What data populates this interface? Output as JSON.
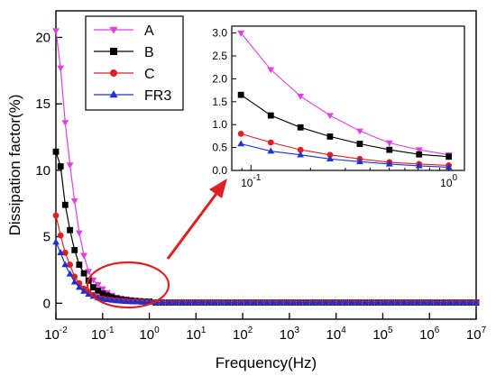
{
  "chart_data": [
    {
      "type": "line",
      "role": "main",
      "xlabel": "Frequency(Hz)",
      "ylabel": "Dissipation factor(%)",
      "xscale": "log",
      "xlim": [
        0.01,
        10000000
      ],
      "ylim": [
        -1.2,
        22
      ],
      "y_ticks": [
        0,
        5,
        10,
        15,
        20
      ],
      "x_ticks": [
        0.01,
        0.1,
        1,
        10,
        100,
        1000,
        10000,
        100000,
        1000000,
        10000000
      ],
      "x_tick_labels": [
        {
          "base": "10",
          "exp": "-2"
        },
        {
          "base": "10",
          "exp": "-1"
        },
        {
          "base": "10",
          "exp": "0"
        },
        {
          "base": "10",
          "exp": "1"
        },
        {
          "base": "10",
          "exp": "2"
        },
        {
          "base": "10",
          "exp": "3"
        },
        {
          "base": "10",
          "exp": "4"
        },
        {
          "base": "10",
          "exp": "5"
        },
        {
          "base": "10",
          "exp": "6"
        },
        {
          "base": "10",
          "exp": "7"
        }
      ],
      "legend_position": "top-left",
      "series": [
        {
          "name": "A",
          "color": "#e040e0",
          "marker": "triangle-down",
          "values": [
            20.5,
            17.7,
            13.6,
            10.4,
            7.7,
            5.3,
            3.6,
            2.4,
            1.75,
            1.4,
            1.08,
            0.8,
            0.6,
            0.45,
            0.37,
            0.31,
            0.26,
            0.22,
            0.2,
            0.18,
            0.16
          ]
        },
        {
          "name": "B",
          "color": "#000000",
          "marker": "square",
          "values": [
            11.4,
            10.3,
            7.4,
            5.5,
            4.0,
            2.9,
            2.25,
            1.7,
            1.2,
            0.95,
            0.72,
            0.58,
            0.45,
            0.35,
            0.28,
            0.24,
            0.2,
            0.17,
            0.15,
            0.13,
            0.12
          ]
        },
        {
          "name": "C",
          "color": "#e02020",
          "marker": "circle",
          "values": [
            6.6,
            5.1,
            3.8,
            2.9,
            2.0,
            1.5,
            1.1,
            0.85,
            0.62,
            0.45,
            0.36,
            0.3,
            0.26,
            0.22,
            0.19,
            0.17,
            0.15,
            0.13,
            0.12,
            0.11,
            0.1
          ]
        },
        {
          "name": "FR3",
          "color": "#2030d0",
          "marker": "triangle-up",
          "values": [
            4.6,
            3.8,
            2.9,
            2.2,
            1.6,
            1.2,
            0.9,
            0.68,
            0.52,
            0.4,
            0.32,
            0.27,
            0.23,
            0.19,
            0.16,
            0.14,
            0.12,
            0.11,
            0.1,
            0.09,
            0.08
          ]
        }
      ],
      "x": [
        0.01,
        0.0126,
        0.0158,
        0.02,
        0.0251,
        0.0316,
        0.0398,
        0.05,
        0.063,
        0.0794,
        0.1,
        0.126,
        0.158,
        0.2,
        0.251,
        0.316,
        0.398,
        0.5,
        0.63,
        0.794,
        1.0
      ],
      "tail": {
        "from": 1,
        "to": 10000000,
        "value": 0.05,
        "points": 50
      }
    },
    {
      "type": "line",
      "role": "inset",
      "xscale": "log",
      "xlim": [
        0.08,
        1.2
      ],
      "ylim": [
        0,
        3.15
      ],
      "y_ticks": [
        0.0,
        0.5,
        1.0,
        1.5,
        2.0,
        2.5,
        3.0
      ],
      "y_tick_labels": [
        "0.0",
        "0.5",
        "1.0",
        "1.5",
        "2.0",
        "2.5",
        "3.0"
      ],
      "x_tick_labels": [
        {
          "value": 0.1,
          "base": "10",
          "exp": "-1"
        },
        {
          "value": 1,
          "base": "10",
          "exp": "0"
        }
      ],
      "x": [
        0.089,
        0.126,
        0.178,
        0.251,
        0.355,
        0.501,
        0.708,
        1.0
      ],
      "series": [
        {
          "name": "A",
          "color": "#e040e0",
          "marker": "triangle-down",
          "values": [
            3.0,
            2.2,
            1.62,
            1.2,
            0.86,
            0.6,
            0.45,
            0.34
          ]
        },
        {
          "name": "B",
          "color": "#000000",
          "marker": "square",
          "values": [
            1.65,
            1.2,
            0.94,
            0.74,
            0.58,
            0.45,
            0.35,
            0.3
          ]
        },
        {
          "name": "C",
          "color": "#e02020",
          "marker": "circle",
          "values": [
            0.8,
            0.61,
            0.45,
            0.34,
            0.25,
            0.18,
            0.14,
            0.11
          ]
        },
        {
          "name": "FR3",
          "color": "#2030d0",
          "marker": "triangle-up",
          "values": [
            0.58,
            0.42,
            0.34,
            0.25,
            0.19,
            0.14,
            0.1,
            0.07
          ]
        }
      ]
    }
  ],
  "annotation": {
    "ellipse_color": "#e02020",
    "arrow_color": "#e02020"
  }
}
